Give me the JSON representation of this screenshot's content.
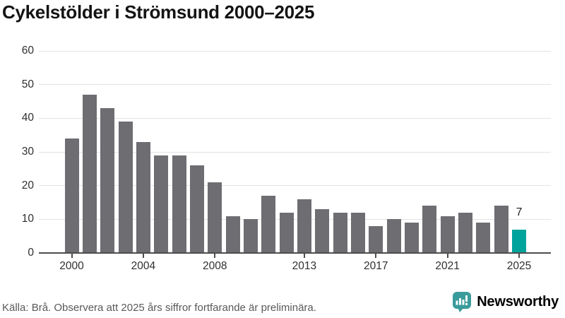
{
  "title": "Cykelstölder i Strömsund 2000–2025",
  "footer": {
    "source_note": "Källa: Brå. Observera att 2025 års siffror fortfarande är preliminära.",
    "brand": "Newsworthy"
  },
  "colors": {
    "bar": "#6d6d72",
    "highlight": "#00a49c",
    "brand": "#3a9b9b",
    "grid": "#e3e3e3",
    "axis": "#4d4d4d",
    "tick_text": "#2f2f2f",
    "value_text": "#1a1a1a",
    "title_text": "#141414",
    "footer_text": "#595959"
  },
  "chart_data": {
    "type": "bar",
    "title": "Cykelstölder i Strömsund 2000–2025",
    "categories": [
      2000,
      2001,
      2002,
      2003,
      2004,
      2005,
      2006,
      2007,
      2008,
      2009,
      2010,
      2011,
      2012,
      2013,
      2014,
      2015,
      2016,
      2017,
      2018,
      2019,
      2020,
      2021,
      2022,
      2023,
      2024,
      2025
    ],
    "values": [
      34,
      47,
      43,
      39,
      33,
      29,
      29,
      26,
      21,
      11,
      10,
      17,
      12,
      16,
      13,
      12,
      12,
      8,
      10,
      9,
      14,
      11,
      12,
      9,
      14,
      7
    ],
    "x_tick_labels": [
      "2000",
      "2004",
      "2008",
      "2013",
      "2017",
      "2021",
      "2025"
    ],
    "y_ticks": [
      0,
      10,
      20,
      30,
      40,
      50,
      60
    ],
    "ylim": [
      0,
      60
    ],
    "xlabel": "",
    "ylabel": "",
    "grid": "horizontal",
    "legend": "none",
    "highlight": {
      "category": 2025,
      "value_label": "7"
    }
  }
}
